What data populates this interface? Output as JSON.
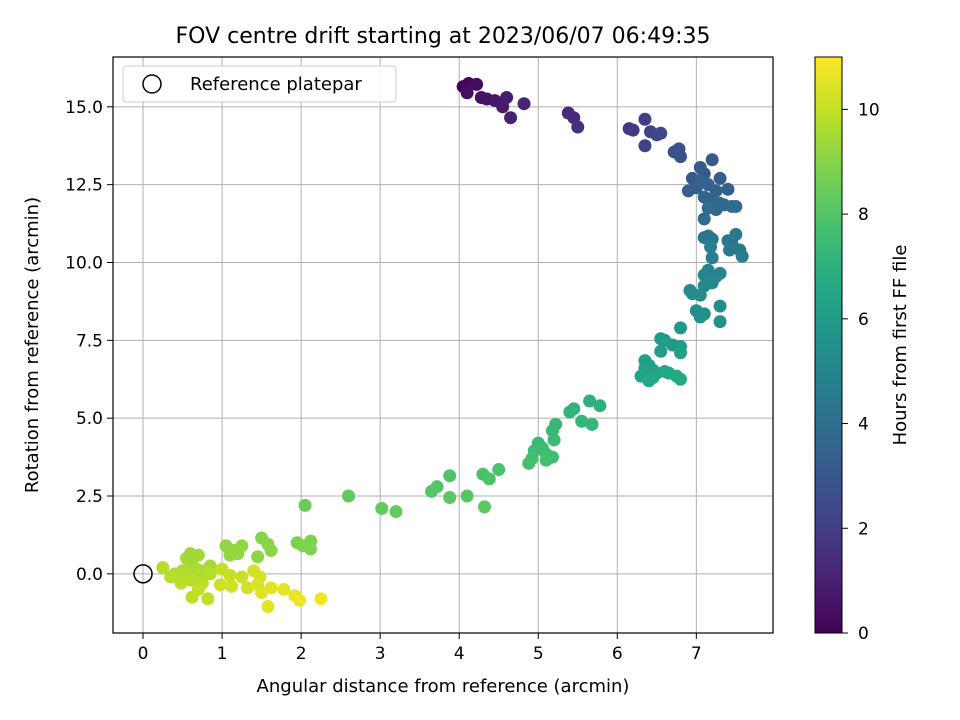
{
  "chart_data": {
    "type": "scatter",
    "title": "FOV centre drift starting at 2023/06/07 06:49:35",
    "xlabel": "Angular distance from reference (arcmin)",
    "ylabel": "Rotation from reference (arcmin)",
    "xlim": [
      -0.38,
      7.97
    ],
    "ylim": [
      -1.9,
      16.6
    ],
    "xticks": [
      0,
      1,
      2,
      3,
      4,
      5,
      6,
      7
    ],
    "xtick_labels": [
      "0",
      "1",
      "2",
      "3",
      "4",
      "5",
      "6",
      "7"
    ],
    "yticks": [
      0,
      2.5,
      5,
      7.5,
      10,
      12.5,
      15
    ],
    "ytick_labels": [
      "0.0",
      "2.5",
      "5.0",
      "7.5",
      "10.0",
      "12.5",
      "15.0"
    ],
    "grid": true,
    "legend": {
      "label": "Reference platepar",
      "position": "upper-left"
    },
    "reference_point": {
      "x": 0,
      "y": 0
    },
    "colorbar": {
      "label": "Hours from first FF file",
      "colormap": "viridis",
      "range": [
        0,
        11
      ],
      "ticks": [
        0,
        2,
        4,
        6,
        8,
        10
      ],
      "tick_labels": [
        "0",
        "2",
        "4",
        "6",
        "8",
        "10"
      ]
    },
    "points": [
      [
        4.05,
        15.65,
        0.1
      ],
      [
        4.12,
        15.75,
        0.2
      ],
      [
        4.22,
        15.72,
        0.3
      ],
      [
        4.1,
        15.45,
        0.4
      ],
      [
        4.28,
        15.3,
        0.5
      ],
      [
        4.35,
        15.25,
        0.6
      ],
      [
        4.45,
        15.2,
        0.7
      ],
      [
        4.55,
        15.0,
        0.8
      ],
      [
        4.6,
        15.3,
        0.9
      ],
      [
        4.65,
        14.65,
        1.0
      ],
      [
        4.82,
        15.1,
        1.1
      ],
      [
        5.38,
        14.8,
        1.3
      ],
      [
        5.45,
        14.65,
        1.4
      ],
      [
        5.5,
        14.35,
        1.5
      ],
      [
        6.15,
        14.3,
        1.8
      ],
      [
        6.2,
        14.25,
        1.9
      ],
      [
        6.35,
        14.6,
        2.0
      ],
      [
        6.35,
        13.75,
        2.1
      ],
      [
        6.42,
        14.2,
        2.2
      ],
      [
        6.5,
        14.1,
        2.3
      ],
      [
        6.55,
        14.15,
        2.35
      ],
      [
        6.72,
        13.55,
        2.6
      ],
      [
        6.78,
        13.65,
        2.7
      ],
      [
        6.8,
        13.4,
        2.8
      ],
      [
        6.95,
        12.7,
        3.0
      ],
      [
        7.05,
        13.05,
        3.05
      ],
      [
        7.1,
        12.85,
        3.1
      ],
      [
        7.2,
        13.3,
        3.1
      ],
      [
        7.3,
        12.7,
        3.2
      ],
      [
        7.4,
        12.35,
        3.3
      ],
      [
        6.9,
        12.3,
        3.3
      ],
      [
        7.0,
        12.4,
        3.35
      ],
      [
        7.05,
        12.6,
        3.4
      ],
      [
        7.15,
        12.5,
        3.4
      ],
      [
        7.25,
        12.3,
        3.45
      ],
      [
        7.1,
        12.1,
        3.5
      ],
      [
        7.2,
        12.05,
        3.5
      ],
      [
        7.3,
        11.9,
        3.6
      ],
      [
        7.25,
        11.7,
        3.7
      ],
      [
        7.35,
        11.85,
        3.7
      ],
      [
        7.45,
        11.8,
        3.8
      ],
      [
        7.5,
        11.8,
        3.85
      ],
      [
        7.1,
        11.4,
        3.9
      ],
      [
        7.15,
        11.75,
        3.9
      ],
      [
        7.1,
        10.8,
        4.2
      ],
      [
        7.15,
        10.85,
        4.25
      ],
      [
        7.2,
        10.75,
        4.3
      ],
      [
        7.4,
        10.7,
        4.3
      ],
      [
        7.5,
        10.9,
        4.35
      ],
      [
        7.45,
        10.6,
        4.4
      ],
      [
        7.42,
        10.4,
        4.45
      ],
      [
        7.55,
        10.4,
        4.5
      ],
      [
        7.58,
        10.2,
        4.55
      ],
      [
        7.18,
        10.5,
        4.6
      ],
      [
        7.2,
        10.15,
        4.6
      ],
      [
        7.15,
        9.75,
        4.9
      ],
      [
        7.1,
        9.6,
        5.0
      ],
      [
        7.25,
        9.55,
        5.0
      ],
      [
        7.3,
        9.65,
        5.05
      ],
      [
        7.2,
        9.35,
        5.1
      ],
      [
        7.1,
        9.25,
        5.15
      ],
      [
        6.92,
        9.1,
        5.2
      ],
      [
        6.95,
        9.0,
        5.25
      ],
      [
        7.05,
        8.95,
        5.3
      ],
      [
        7.3,
        8.6,
        5.35
      ],
      [
        7.0,
        8.45,
        5.4
      ],
      [
        7.1,
        8.35,
        5.45
      ],
      [
        7.05,
        8.25,
        5.5
      ],
      [
        7.3,
        8.1,
        5.55
      ],
      [
        6.8,
        7.9,
        5.8
      ],
      [
        6.55,
        7.55,
        5.9
      ],
      [
        6.6,
        7.5,
        5.95
      ],
      [
        6.7,
        7.35,
        6.0
      ],
      [
        6.8,
        7.3,
        6.05
      ],
      [
        6.55,
        7.15,
        6.1
      ],
      [
        6.8,
        7.1,
        6.15
      ],
      [
        6.35,
        6.85,
        6.2
      ],
      [
        6.4,
        6.7,
        6.25
      ],
      [
        6.35,
        6.6,
        6.3
      ],
      [
        6.45,
        6.55,
        6.35
      ],
      [
        6.5,
        6.45,
        6.4
      ],
      [
        6.3,
        6.35,
        6.45
      ],
      [
        6.45,
        6.3,
        6.5
      ],
      [
        6.6,
        6.5,
        6.5
      ],
      [
        6.65,
        6.45,
        6.55
      ],
      [
        6.4,
        6.2,
        6.6
      ],
      [
        6.75,
        6.35,
        6.6
      ],
      [
        6.8,
        6.25,
        6.65
      ],
      [
        5.65,
        5.55,
        7.0
      ],
      [
        5.78,
        5.4,
        7.05
      ],
      [
        5.45,
        5.3,
        7.1
      ],
      [
        5.4,
        5.2,
        7.15
      ],
      [
        5.55,
        4.9,
        7.2
      ],
      [
        5.68,
        4.8,
        7.25
      ],
      [
        5.22,
        4.8,
        7.3
      ],
      [
        5.18,
        4.6,
        7.35
      ],
      [
        5.2,
        4.3,
        7.4
      ],
      [
        5.0,
        4.2,
        7.45
      ],
      [
        5.05,
        4.05,
        7.5
      ],
      [
        4.95,
        3.95,
        7.5
      ],
      [
        5.1,
        3.85,
        7.55
      ],
      [
        5.18,
        3.75,
        7.6
      ],
      [
        4.92,
        3.7,
        7.65
      ],
      [
        4.88,
        3.55,
        7.7
      ],
      [
        5.1,
        3.65,
        7.7
      ],
      [
        4.5,
        3.35,
        7.8
      ],
      [
        4.3,
        3.2,
        7.85
      ],
      [
        4.38,
        3.05,
        7.9
      ],
      [
        3.88,
        3.15,
        7.95
      ],
      [
        3.72,
        2.8,
        8.0
      ],
      [
        3.65,
        2.65,
        8.05
      ],
      [
        4.1,
        2.5,
        8.1
      ],
      [
        3.88,
        2.45,
        8.15
      ],
      [
        4.32,
        2.15,
        8.2
      ],
      [
        2.6,
        2.5,
        8.3
      ],
      [
        3.02,
        2.1,
        8.35
      ],
      [
        3.2,
        2.0,
        8.4
      ],
      [
        2.05,
        2.2,
        8.45
      ],
      [
        1.95,
        1.0,
        8.8
      ],
      [
        2.12,
        1.05,
        8.85
      ],
      [
        2.02,
        0.9,
        8.9
      ],
      [
        2.12,
        0.8,
        8.9
      ],
      [
        1.5,
        1.15,
        9.0
      ],
      [
        1.58,
        0.95,
        9.05
      ],
      [
        1.62,
        0.75,
        9.1
      ],
      [
        1.45,
        0.55,
        9.1
      ],
      [
        1.05,
        0.9,
        9.15
      ],
      [
        1.25,
        0.9,
        9.15
      ],
      [
        1.15,
        0.75,
        9.2
      ],
      [
        1.2,
        0.65,
        9.2
      ],
      [
        1.1,
        0.6,
        9.25
      ],
      [
        0.55,
        0.5,
        9.4
      ],
      [
        0.6,
        0.65,
        9.45
      ],
      [
        0.7,
        0.6,
        9.45
      ],
      [
        0.62,
        0.3,
        9.5
      ],
      [
        0.85,
        0.25,
        9.5
      ],
      [
        0.5,
        0.1,
        9.55
      ],
      [
        0.68,
        0.15,
        9.6
      ],
      [
        0.78,
        0.1,
        9.6
      ],
      [
        0.4,
        0.0,
        9.65
      ],
      [
        0.55,
        0.05,
        9.7
      ],
      [
        0.72,
        -0.05,
        9.7
      ],
      [
        0.85,
        0.0,
        9.75
      ],
      [
        0.25,
        0.2,
        9.75
      ],
      [
        0.35,
        -0.1,
        9.8
      ],
      [
        0.48,
        -0.3,
        9.8
      ],
      [
        0.6,
        -0.2,
        9.85
      ],
      [
        0.75,
        -0.3,
        9.85
      ],
      [
        0.62,
        -0.75,
        9.9
      ],
      [
        0.82,
        -0.8,
        9.9
      ],
      [
        0.7,
        -0.5,
        9.95
      ],
      [
        1.0,
        0.15,
        10.0
      ],
      [
        1.1,
        -0.05,
        10.05
      ],
      [
        1.25,
        -0.1,
        10.1
      ],
      [
        0.98,
        -0.35,
        10.15
      ],
      [
        1.12,
        -0.4,
        10.2
      ],
      [
        1.32,
        -0.45,
        10.25
      ],
      [
        1.4,
        0.1,
        10.3
      ],
      [
        1.48,
        -0.1,
        10.35
      ],
      [
        1.45,
        -0.35,
        10.4
      ],
      [
        1.5,
        -0.6,
        10.45
      ],
      [
        1.62,
        -0.45,
        10.5
      ],
      [
        1.58,
        -1.05,
        10.55
      ],
      [
        1.78,
        -0.5,
        10.6
      ],
      [
        1.92,
        -0.7,
        10.65
      ],
      [
        1.98,
        -0.85,
        10.7
      ],
      [
        2.25,
        -0.8,
        10.8
      ]
    ]
  }
}
